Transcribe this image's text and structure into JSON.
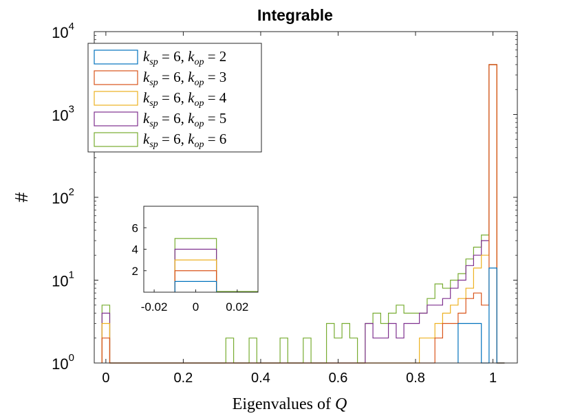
{
  "chart_data": {
    "type": "histogram",
    "title": "Integrable",
    "xlabel_text": "Eigenvalues of ",
    "xlabel_var": "Q",
    "ylabel": "#",
    "xlim": [
      -0.03,
      1.063
    ],
    "ylim": [
      1,
      10000
    ],
    "yscale": "log",
    "bin_width": 0.02,
    "x_ticks": [
      {
        "value": 0,
        "label": "0"
      },
      {
        "value": 0.2,
        "label": "0.2"
      },
      {
        "value": 0.4,
        "label": "0.4"
      },
      {
        "value": 0.6,
        "label": "0.6"
      },
      {
        "value": 0.8,
        "label": "0.8"
      },
      {
        "value": 1,
        "label": "1"
      }
    ],
    "y_ticks": [
      {
        "value": 1,
        "base": "10",
        "exp": "0"
      },
      {
        "value": 10,
        "base": "10",
        "exp": "1"
      },
      {
        "value": 100,
        "base": "10",
        "exp": "2"
      },
      {
        "value": 1000,
        "base": "10",
        "exp": "3"
      },
      {
        "value": 10000,
        "base": "10",
        "exp": "4"
      }
    ],
    "legend": {
      "position": "top-left"
    },
    "series": [
      {
        "name": "k_sp = 6, k_op = 2",
        "k_sp": "6",
        "k_op": "2",
        "color": "#0072BD",
        "bins": [
          [
            0.91,
            3
          ],
          [
            0.93,
            3
          ],
          [
            0.95,
            3
          ],
          [
            0.97,
            1
          ],
          [
            0.99,
            14
          ],
          [
            1.01,
            0
          ]
        ]
      },
      {
        "name": "k_sp = 6, k_op = 3",
        "k_sp": "6",
        "k_op": "3",
        "color": "#D95319",
        "bins": [
          [
            -0.01,
            2
          ],
          [
            0.01,
            0
          ],
          [
            0.77,
            1
          ],
          [
            0.79,
            1
          ],
          [
            0.81,
            1
          ],
          [
            0.83,
            1
          ],
          [
            0.85,
            2
          ],
          [
            0.87,
            3
          ],
          [
            0.89,
            3
          ],
          [
            0.91,
            4
          ],
          [
            0.93,
            6
          ],
          [
            0.95,
            7
          ],
          [
            0.97,
            5
          ],
          [
            0.99,
            4000
          ],
          [
            1.01,
            0
          ]
        ]
      },
      {
        "name": "k_sp = 6, k_op = 4",
        "k_sp": "6",
        "k_op": "4",
        "color": "#EDB120",
        "bins": [
          [
            -0.01,
            3
          ],
          [
            0.01,
            0
          ],
          [
            0.73,
            1
          ],
          [
            0.75,
            1
          ],
          [
            0.77,
            1
          ],
          [
            0.79,
            1
          ],
          [
            0.81,
            2
          ],
          [
            0.83,
            2
          ],
          [
            0.85,
            3
          ],
          [
            0.87,
            4
          ],
          [
            0.89,
            5
          ],
          [
            0.91,
            6
          ],
          [
            0.93,
            8
          ],
          [
            0.95,
            14
          ],
          [
            0.97,
            20
          ],
          [
            0.99,
            4000
          ],
          [
            1.01,
            0
          ]
        ]
      },
      {
        "name": "k_sp = 6, k_op = 5",
        "k_sp": "6",
        "k_op": "5",
        "color": "#7E2F8E",
        "bins": [
          [
            -0.01,
            4
          ],
          [
            0.01,
            0
          ],
          [
            0.67,
            3
          ],
          [
            0.69,
            2
          ],
          [
            0.71,
            2
          ],
          [
            0.73,
            3
          ],
          [
            0.75,
            2
          ],
          [
            0.77,
            3
          ],
          [
            0.79,
            3
          ],
          [
            0.81,
            4
          ],
          [
            0.83,
            5
          ],
          [
            0.85,
            5
          ],
          [
            0.87,
            6
          ],
          [
            0.89,
            8
          ],
          [
            0.91,
            10
          ],
          [
            0.93,
            15
          ],
          [
            0.95,
            20
          ],
          [
            0.97,
            30
          ],
          [
            0.99,
            4000
          ],
          [
            1.01,
            0
          ]
        ]
      },
      {
        "name": "k_sp = 6, k_op = 6",
        "k_sp": "6",
        "k_op": "6",
        "color": "#77AC30",
        "bins": [
          [
            -0.01,
            5
          ],
          [
            0.01,
            0
          ],
          [
            0.31,
            2
          ],
          [
            0.33,
            0
          ],
          [
            0.37,
            2
          ],
          [
            0.39,
            0
          ],
          [
            0.45,
            2
          ],
          [
            0.47,
            0
          ],
          [
            0.51,
            2
          ],
          [
            0.53,
            1
          ],
          [
            0.55,
            0
          ],
          [
            0.57,
            3
          ],
          [
            0.59,
            2
          ],
          [
            0.61,
            3
          ],
          [
            0.63,
            2
          ],
          [
            0.65,
            0
          ],
          [
            0.67,
            3
          ],
          [
            0.69,
            4
          ],
          [
            0.71,
            3
          ],
          [
            0.73,
            4
          ],
          [
            0.75,
            5
          ],
          [
            0.77,
            4
          ],
          [
            0.79,
            4
          ],
          [
            0.81,
            4
          ],
          [
            0.83,
            6
          ],
          [
            0.85,
            9
          ],
          [
            0.87,
            8
          ],
          [
            0.89,
            10
          ],
          [
            0.91,
            12
          ],
          [
            0.93,
            18
          ],
          [
            0.95,
            25
          ],
          [
            0.97,
            35
          ],
          [
            0.99,
            4000
          ],
          [
            1.01,
            0
          ]
        ]
      }
    ],
    "inset": {
      "xlim": [
        -0.025,
        0.03
      ],
      "ylim": [
        0,
        8
      ],
      "yscale": "linear",
      "x_ticks": [
        {
          "value": -0.02,
          "label": "-0.02"
        },
        {
          "value": 0,
          "label": "0"
        },
        {
          "value": 0.02,
          "label": "0.02"
        }
      ],
      "y_ticks": [
        {
          "value": 2,
          "label": "2"
        },
        {
          "value": 4,
          "label": "4"
        },
        {
          "value": 6,
          "label": "6"
        }
      ],
      "series": [
        {
          "name": "k_op = 2",
          "color": "#0072BD",
          "value": 1
        },
        {
          "name": "k_op = 3",
          "color": "#D95319",
          "value": 2
        },
        {
          "name": "k_op = 4",
          "color": "#EDB120",
          "value": 3
        },
        {
          "name": "k_op = 5",
          "color": "#7E2F8E",
          "value": 4
        },
        {
          "name": "k_op = 6",
          "color": "#77AC30",
          "value": 5
        }
      ],
      "bin": [
        -0.01,
        0.01
      ]
    }
  }
}
